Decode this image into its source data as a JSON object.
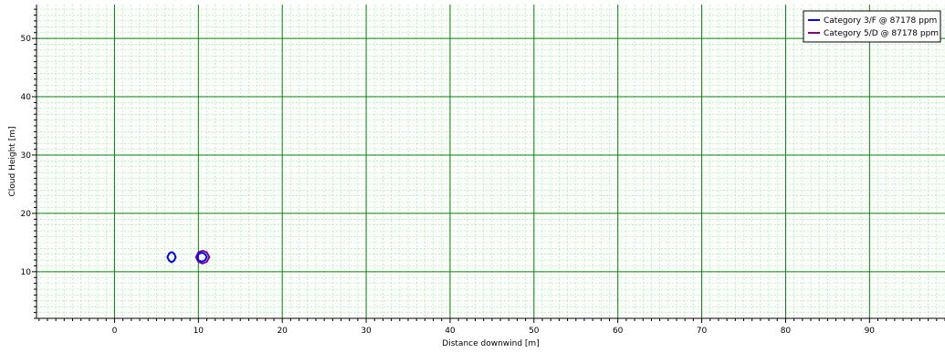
{
  "chart_data": {
    "type": "line",
    "title": "",
    "xlabel": "Distance downwind [m]",
    "ylabel": "Cloud Height [m]",
    "xlim": [
      -9.3,
      99.0
    ],
    "ylim": [
      2.0,
      55.8
    ],
    "x_ticks": [
      0,
      10,
      20,
      30,
      40,
      50,
      60,
      70,
      80,
      90
    ],
    "y_ticks": [
      10,
      20,
      30,
      40,
      50
    ],
    "x_minor_step": 1,
    "y_minor_step": 1,
    "grid": {
      "major": true,
      "minor": true,
      "major_color": "#008000",
      "minor_color": "#90ee90"
    },
    "legend_position": "top-right",
    "series": [
      {
        "name": "Category 3/F @ 87178 ppm",
        "color": "#0000ff",
        "contour": [
          [
            6.8,
            13.4
          ],
          [
            7.1,
            13.1
          ],
          [
            7.3,
            12.5
          ],
          [
            7.1,
            11.9
          ],
          [
            6.8,
            11.6
          ],
          [
            6.5,
            11.9
          ],
          [
            6.3,
            12.5
          ],
          [
            6.5,
            13.1
          ],
          [
            6.8,
            13.4
          ]
        ]
      },
      {
        "name": "Category 5/D @ 87178 ppm",
        "color": "#800080",
        "contour": [
          [
            10.5,
            13.6
          ],
          [
            11.0,
            13.3
          ],
          [
            11.3,
            12.5
          ],
          [
            11.0,
            11.7
          ],
          [
            10.5,
            11.4
          ],
          [
            10.0,
            11.7
          ],
          [
            9.7,
            12.5
          ],
          [
            10.0,
            13.3
          ],
          [
            10.5,
            13.6
          ]
        ]
      },
      {
        "name": "",
        "color": "#0000ff",
        "contour": [
          [
            10.4,
            13.3
          ],
          [
            10.8,
            13.0
          ],
          [
            11.0,
            12.5
          ],
          [
            10.8,
            12.0
          ],
          [
            10.4,
            11.7
          ],
          [
            10.0,
            12.0
          ],
          [
            9.9,
            12.5
          ],
          [
            10.0,
            13.0
          ],
          [
            10.4,
            13.3
          ]
        ]
      }
    ]
  }
}
